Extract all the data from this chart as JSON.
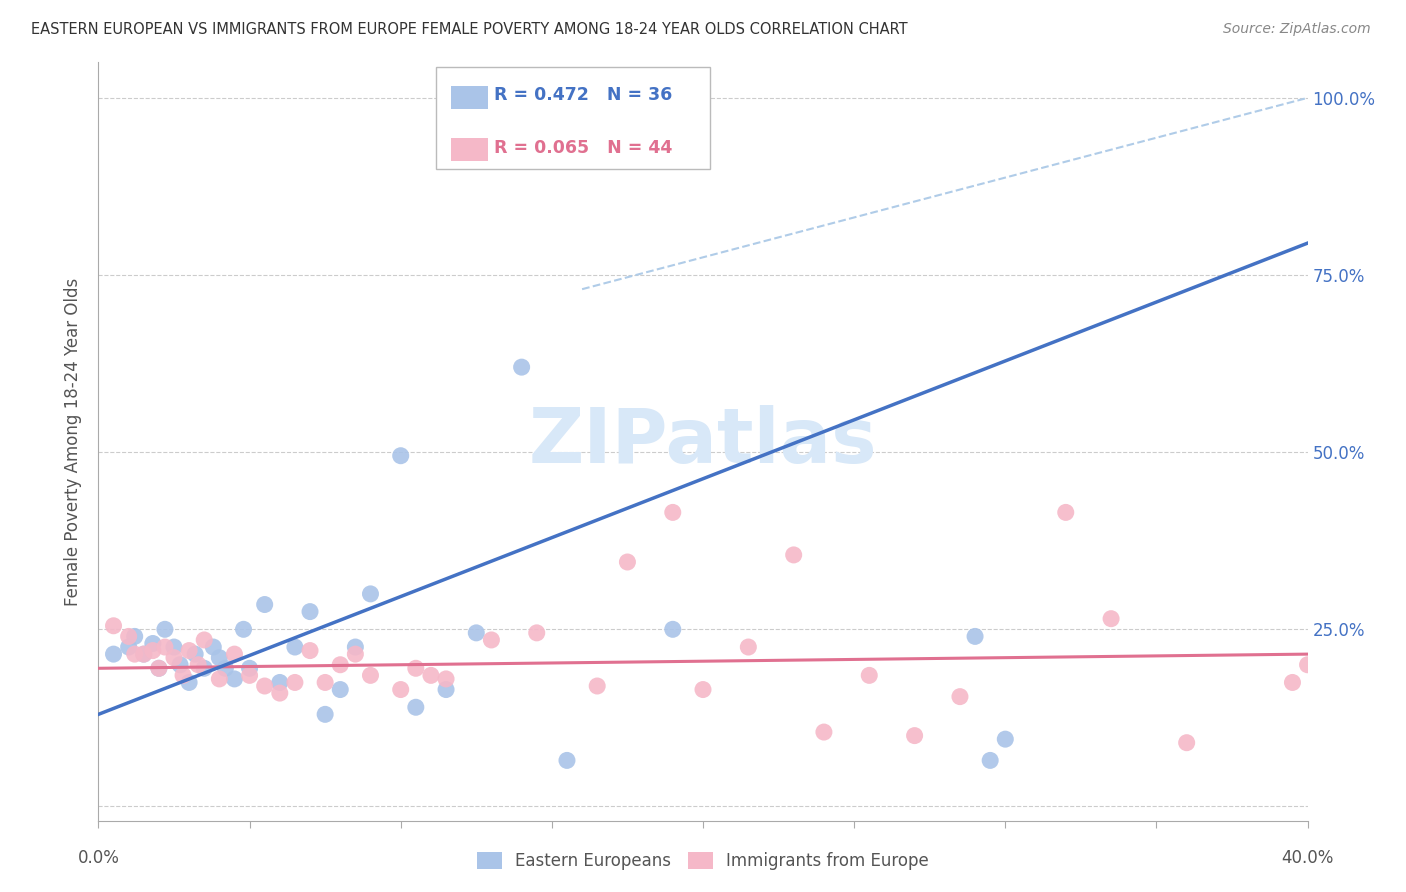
{
  "title": "EASTERN EUROPEAN VS IMMIGRANTS FROM EUROPE FEMALE POVERTY AMONG 18-24 YEAR OLDS CORRELATION CHART",
  "source": "Source: ZipAtlas.com",
  "ylabel": "Female Poverty Among 18-24 Year Olds",
  "xmin": 0.0,
  "xmax": 0.4,
  "ymin": -0.02,
  "ymax": 1.05,
  "R_blue": 0.472,
  "N_blue": 36,
  "R_pink": 0.065,
  "N_pink": 44,
  "blue_color": "#aac4e8",
  "blue_edge_color": "#aac4e8",
  "blue_line_color": "#4472c4",
  "pink_color": "#f5b8c8",
  "pink_edge_color": "#f5b8c8",
  "pink_line_color": "#e07090",
  "dashed_line_color": "#b0cce8",
  "grid_color": "#cccccc",
  "watermark_color": "#d8e8f8",
  "blue_scatter_x": [
    0.005,
    0.01,
    0.012,
    0.015,
    0.018,
    0.02,
    0.022,
    0.025,
    0.027,
    0.03,
    0.032,
    0.035,
    0.038,
    0.04,
    0.042,
    0.045,
    0.048,
    0.05,
    0.055,
    0.06,
    0.065,
    0.07,
    0.075,
    0.08,
    0.085,
    0.09,
    0.1,
    0.105,
    0.115,
    0.125,
    0.14,
    0.155,
    0.19,
    0.29,
    0.295,
    0.3
  ],
  "blue_scatter_y": [
    0.215,
    0.225,
    0.24,
    0.215,
    0.23,
    0.195,
    0.25,
    0.225,
    0.2,
    0.175,
    0.215,
    0.195,
    0.225,
    0.21,
    0.195,
    0.18,
    0.25,
    0.195,
    0.285,
    0.175,
    0.225,
    0.275,
    0.13,
    0.165,
    0.225,
    0.3,
    0.495,
    0.14,
    0.165,
    0.245,
    0.62,
    0.065,
    0.25,
    0.24,
    0.065,
    0.095
  ],
  "pink_scatter_x": [
    0.005,
    0.01,
    0.012,
    0.015,
    0.018,
    0.02,
    0.022,
    0.025,
    0.028,
    0.03,
    0.033,
    0.035,
    0.04,
    0.045,
    0.05,
    0.055,
    0.06,
    0.065,
    0.07,
    0.075,
    0.08,
    0.085,
    0.09,
    0.1,
    0.105,
    0.11,
    0.115,
    0.13,
    0.145,
    0.165,
    0.175,
    0.19,
    0.2,
    0.215,
    0.23,
    0.24,
    0.255,
    0.27,
    0.285,
    0.32,
    0.335,
    0.36,
    0.395,
    0.4
  ],
  "pink_scatter_y": [
    0.255,
    0.24,
    0.215,
    0.215,
    0.22,
    0.195,
    0.225,
    0.21,
    0.185,
    0.22,
    0.2,
    0.235,
    0.18,
    0.215,
    0.185,
    0.17,
    0.16,
    0.175,
    0.22,
    0.175,
    0.2,
    0.215,
    0.185,
    0.165,
    0.195,
    0.185,
    0.18,
    0.235,
    0.245,
    0.17,
    0.345,
    0.415,
    0.165,
    0.225,
    0.355,
    0.105,
    0.185,
    0.1,
    0.155,
    0.415,
    0.265,
    0.09,
    0.175,
    0.2
  ],
  "blue_trendline_x": [
    0.0,
    0.4
  ],
  "blue_trendline_y": [
    0.13,
    0.795
  ],
  "pink_trendline_x": [
    0.0,
    0.4
  ],
  "pink_trendline_y": [
    0.195,
    0.215
  ],
  "diag_line_x": [
    0.16,
    0.4
  ],
  "diag_line_y": [
    0.73,
    1.0
  ],
  "xtick_positions": [
    0.0,
    0.05,
    0.1,
    0.15,
    0.2,
    0.25,
    0.3,
    0.35,
    0.4
  ],
  "ytick_positions": [
    0.0,
    0.25,
    0.5,
    0.75,
    1.0
  ],
  "ytick_labels_right": [
    "",
    "25.0%",
    "50.0%",
    "75.0%",
    "100.0%"
  ]
}
